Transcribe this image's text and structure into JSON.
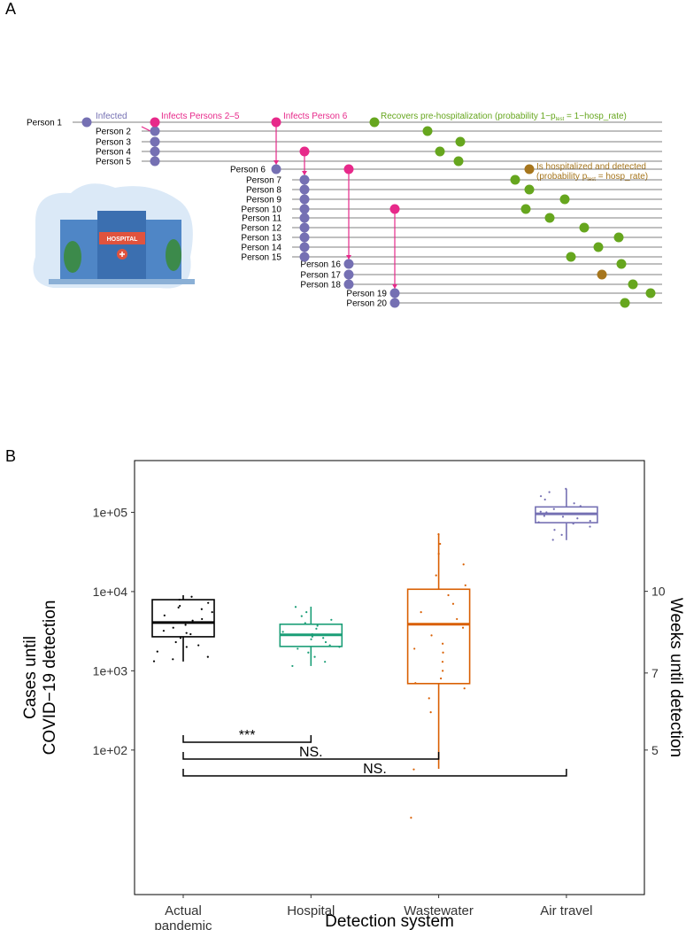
{
  "diagram": {
    "panel_label": "A",
    "persons": [
      "Person 1",
      "Person 2",
      "Person 3",
      "Person 4",
      "Person 5",
      "Person 6",
      "Person 7",
      "Person 8",
      "Person 9",
      "Person 10",
      "Person 11",
      "Person 12",
      "Person 13",
      "Person 14",
      "Person 15",
      "Person 16",
      "Person 17",
      "Person 18",
      "Person 19",
      "Person 20"
    ],
    "notes": {
      "infected": "Infected",
      "infects_2_5": "Infects Persons 2–5",
      "infects_6": "Infects Person 6",
      "recovers": [
        "Recovers pre-hospitalization (probability 1−p",
        "test",
        " = 1−hosp_rate)"
      ],
      "hospitalized": "Is hospitalized and detected",
      "hosp_prob": [
        "(probability p",
        "test",
        " = hosp_rate)"
      ]
    },
    "hospital_sign": "HOSPITAL"
  },
  "chart_data": {
    "type": "box",
    "panel_label": "B",
    "x_label": "Detection system",
    "y_label": [
      "Cases until",
      "COVID−19 detection"
    ],
    "y2_label": "Weeks until detection",
    "categories": [
      "Actual pandemic",
      "Hospital",
      "Wastewater",
      "Air travel"
    ],
    "log_y": true,
    "ylim": [
      1.5,
      450000
    ],
    "yticks": [
      {
        "value": 100,
        "label": "1e+02"
      },
      {
        "value": 1000,
        "label": "1e+03"
      },
      {
        "value": 10000,
        "label": "1e+04"
      },
      {
        "value": 100000,
        "label": "1e+05"
      }
    ],
    "log_y2": true,
    "y2lim": [
      2.66,
      17.7
    ],
    "y2ticks": [
      5,
      7,
      10
    ],
    "series": [
      {
        "color": "#000000",
        "low": 1310,
        "q1": 2690,
        "median": 4060,
        "q3": 7900,
        "high": 9000,
        "points": [
          1320,
          1500,
          1750,
          2000,
          2300,
          2600,
          2900,
          3200,
          3500,
          3800,
          4100,
          4500,
          5000,
          5500,
          6000,
          6600,
          7200,
          7900,
          8600,
          1400,
          2100,
          3000,
          4300,
          6300
        ]
      },
      {
        "color": "#1b9e77",
        "low": 1150,
        "q1": 2030,
        "median": 2840,
        "q3": 3870,
        "high": 6450,
        "points": [
          1150,
          1300,
          1500,
          1700,
          1900,
          2100,
          2300,
          2500,
          2700,
          2900,
          3100,
          3400,
          3700,
          4000,
          4400,
          4900,
          5500,
          6400,
          2000,
          2600
        ]
      },
      {
        "color": "#d95f02",
        "low": 58,
        "q1": 690,
        "median": 3870,
        "q3": 10700,
        "high": 53200,
        "points": [
          14,
          57,
          300,
          450,
          600,
          800,
          1000,
          1300,
          1700,
          2200,
          2800,
          3500,
          4500,
          5500,
          7000,
          9000,
          12000,
          16000,
          22000,
          30000,
          40000,
          53000,
          700,
          1900
        ]
      },
      {
        "color": "#7570b3",
        "low": 44600,
        "q1": 74000,
        "median": 95900,
        "q3": 117000,
        "high": 198000,
        "points": [
          45000,
          52000,
          60000,
          66000,
          72000,
          78000,
          84000,
          90000,
          96000,
          102000,
          110000,
          120000,
          130000,
          145000,
          160000,
          180000,
          198000,
          88000,
          100000,
          75000
        ]
      }
    ],
    "annotations": [
      {
        "text": "***",
        "from": "Actual pandemic",
        "to": "Hospital"
      },
      {
        "text": "NS.",
        "from": "Actual pandemic",
        "to": "Wastewater"
      },
      {
        "text": "NS.",
        "from": "Actual pandemic",
        "to": "Air travel"
      }
    ]
  }
}
